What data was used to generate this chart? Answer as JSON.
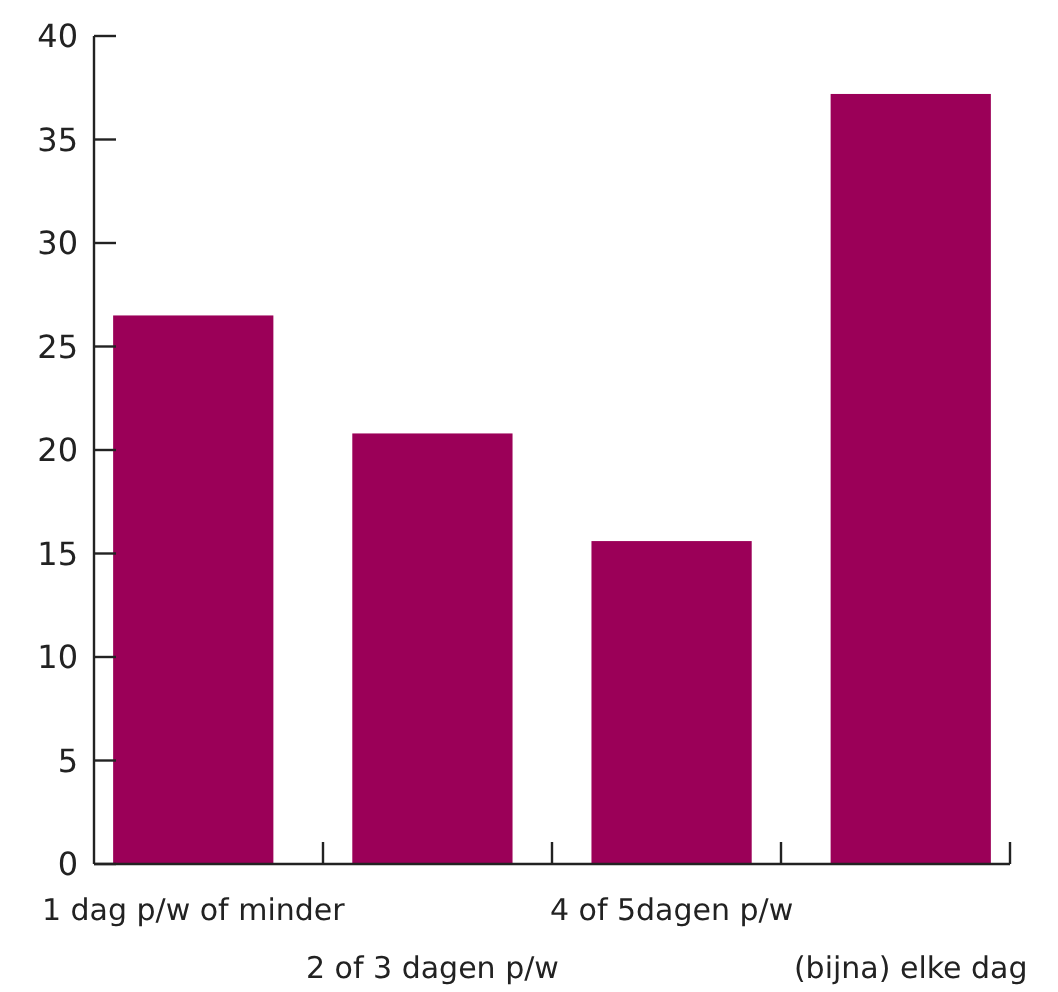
{
  "chart_data": {
    "type": "bar",
    "categories": [
      "1 dag p/w of minder",
      "2 of 3 dagen p/w",
      "4 of 5dagen p/w",
      "(bijna) elke dag"
    ],
    "values": [
      26.5,
      20.8,
      15.6,
      37.2
    ],
    "color": "#9b0058",
    "ylim": [
      0,
      40
    ],
    "yticks": [
      0,
      5,
      10,
      15,
      20,
      25,
      30,
      35,
      40
    ],
    "grid": false
  }
}
